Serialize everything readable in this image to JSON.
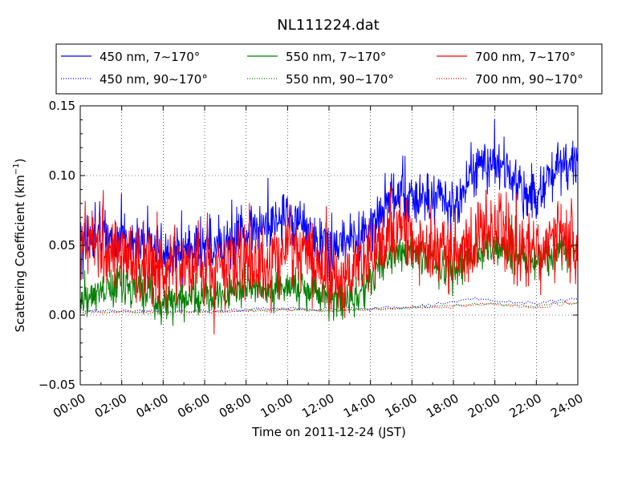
{
  "chart_data": {
    "type": "line",
    "title": "NL111224.dat",
    "xlabel": "Time on 2011-12-24 (JST)",
    "ylabel_main": "Scattering Coefficient (km",
    "ylabel_sup": "−1",
    "ylabel_end": ")",
    "xlim": [
      0,
      24
    ],
    "ylim": [
      -0.05,
      0.15
    ],
    "x_ticks": [
      0,
      2,
      4,
      6,
      8,
      10,
      12,
      14,
      16,
      18,
      20,
      22,
      24
    ],
    "x_tick_labels": [
      "00:00",
      "02:00",
      "04:00",
      "06:00",
      "08:00",
      "10:00",
      "12:00",
      "14:00",
      "16:00",
      "18:00",
      "20:00",
      "22:00",
      "24:00"
    ],
    "y_ticks": [
      -0.05,
      0.0,
      0.05,
      0.1,
      0.15
    ],
    "y_tick_labels": [
      "−0.05",
      "0.00",
      "0.05",
      "0.10",
      "0.15"
    ],
    "grid": true,
    "legend_placement": "top, above plot, 3 columns",
    "legend": [
      {
        "label": "450 nm, 7∼170°",
        "color": "#0000ff",
        "style": "solid"
      },
      {
        "label": "550 nm, 7∼170°",
        "color": "#008000",
        "style": "solid"
      },
      {
        "label": "700 nm, 7∼170°",
        "color": "#ff0000",
        "style": "solid"
      },
      {
        "label": "450 nm, 90∼170°",
        "color": "#0000ff",
        "style": "dotted"
      },
      {
        "label": "550 nm, 90∼170°",
        "color": "#008000",
        "style": "dotted"
      },
      {
        "label": "700 nm, 90∼170°",
        "color": "#ff0000",
        "style": "dotted"
      }
    ],
    "series": [
      {
        "key": "b450_full",
        "color": "#0000ff",
        "style": "solid",
        "x": [
          0,
          1,
          2,
          3,
          4,
          5,
          6,
          7,
          8,
          9,
          10,
          11,
          12,
          13,
          14,
          15,
          16,
          17,
          18,
          19,
          20,
          21,
          22,
          23,
          24
        ],
        "y": [
          0.055,
          0.055,
          0.055,
          0.05,
          0.045,
          0.045,
          0.048,
          0.05,
          0.062,
          0.06,
          0.068,
          0.062,
          0.05,
          0.052,
          0.06,
          0.085,
          0.085,
          0.085,
          0.075,
          0.105,
          0.11,
          0.095,
          0.085,
          0.105,
          0.11
        ],
        "noise": 0.014
      },
      {
        "key": "g550_full",
        "color": "#008000",
        "style": "solid",
        "x": [
          0,
          1,
          2,
          3,
          4,
          5,
          6,
          7,
          8,
          9,
          10,
          11,
          12,
          13,
          14,
          15,
          16,
          17,
          18,
          19,
          20,
          21,
          22,
          23,
          24
        ],
        "y": [
          0.012,
          0.018,
          0.022,
          0.018,
          0.008,
          0.01,
          0.014,
          0.016,
          0.022,
          0.016,
          0.02,
          0.018,
          0.012,
          0.01,
          0.022,
          0.045,
          0.044,
          0.038,
          0.032,
          0.042,
          0.048,
          0.042,
          0.038,
          0.045,
          0.048
        ],
        "noise": 0.01
      },
      {
        "key": "r700_full",
        "color": "#ff0000",
        "style": "solid",
        "x": [
          0,
          1,
          2,
          3,
          4,
          5,
          6,
          7,
          8,
          9,
          10,
          11,
          12,
          13,
          14,
          15,
          16,
          17,
          18,
          19,
          20,
          21,
          22,
          23,
          24
        ],
        "y": [
          0.055,
          0.05,
          0.045,
          0.035,
          0.03,
          0.035,
          0.03,
          0.035,
          0.045,
          0.035,
          0.05,
          0.045,
          0.025,
          0.025,
          0.04,
          0.06,
          0.055,
          0.05,
          0.045,
          0.055,
          0.06,
          0.05,
          0.045,
          0.055,
          0.055
        ],
        "noise": 0.02
      },
      {
        "key": "b450_back",
        "color": "#0000ff",
        "style": "dotted",
        "x": [
          0,
          2,
          4,
          6,
          8,
          10,
          12,
          14,
          16,
          18,
          19,
          20,
          22,
          23,
          24
        ],
        "y": [
          0.003,
          0.003,
          0.003,
          0.003,
          0.004,
          0.005,
          0.004,
          0.005,
          0.006,
          0.009,
          0.012,
          0.01,
          0.008,
          0.01,
          0.012
        ],
        "noise": 0.0008
      },
      {
        "key": "g550_back",
        "color": "#008000",
        "style": "dotted",
        "x": [
          0,
          2,
          4,
          6,
          8,
          10,
          12,
          14,
          16,
          18,
          20,
          22,
          23,
          24
        ],
        "y": [
          0.002,
          0.002,
          0.002,
          0.002,
          0.003,
          0.004,
          0.003,
          0.004,
          0.005,
          0.007,
          0.008,
          0.006,
          0.008,
          0.009
        ],
        "noise": 0.0008
      },
      {
        "key": "r700_back",
        "color": "#ff0000",
        "style": "dotted",
        "x": [
          0,
          2,
          4,
          6,
          8,
          10,
          12,
          14,
          16,
          18,
          20,
          22,
          23,
          24
        ],
        "y": [
          0.002,
          0.002,
          0.002,
          0.002,
          0.003,
          0.004,
          0.003,
          0.004,
          0.005,
          0.006,
          0.008,
          0.005,
          0.007,
          0.009
        ],
        "noise": 0.0008
      }
    ]
  }
}
